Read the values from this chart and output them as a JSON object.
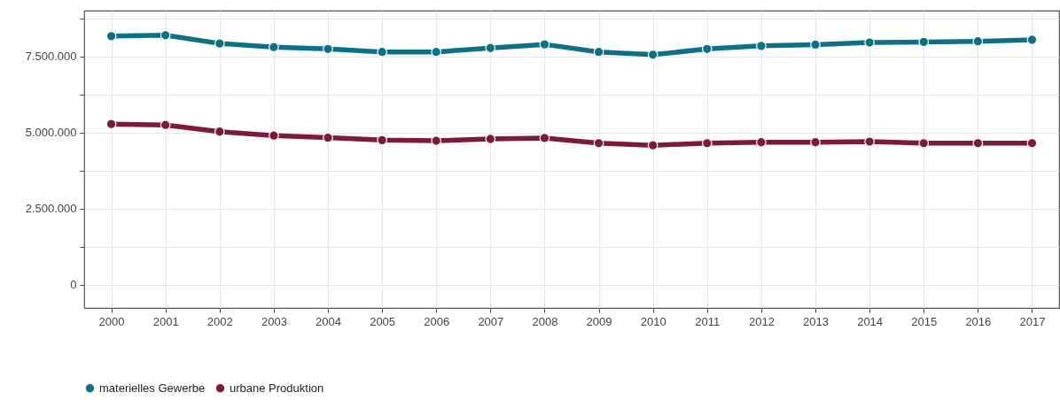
{
  "chart_data": {
    "type": "line",
    "categories": [
      "2000",
      "2001",
      "2002",
      "2003",
      "2004",
      "2005",
      "2006",
      "2007",
      "2008",
      "2009",
      "2010",
      "2011",
      "2012",
      "2013",
      "2014",
      "2015",
      "2016",
      "2017"
    ],
    "series": [
      {
        "name": "materielles Gewerbe",
        "color": "#0e7086",
        "values": [
          8170000,
          8200000,
          7930000,
          7810000,
          7750000,
          7650000,
          7650000,
          7780000,
          7900000,
          7650000,
          7560000,
          7750000,
          7850000,
          7890000,
          7960000,
          7980000,
          8000000,
          8050000
        ]
      },
      {
        "name": "urbane Produktion",
        "color": "#7b1a3e",
        "values": [
          5280000,
          5250000,
          5030000,
          4900000,
          4830000,
          4750000,
          4730000,
          4790000,
          4820000,
          4650000,
          4580000,
          4650000,
          4680000,
          4680000,
          4700000,
          4650000,
          4650000,
          4650000
        ]
      }
    ],
    "ylim": [
      -770000,
      9010000
    ],
    "yticks": [
      0,
      {
        "value": 1250000,
        "label": null
      },
      {
        "value": 2500000,
        "label": "2.500.000"
      },
      {
        "value": 3750000,
        "label": null
      },
      {
        "value": 5000000,
        "label": "5.000.000"
      },
      {
        "value": 6250000,
        "label": null
      },
      {
        "value": 7500000,
        "label": "7.500.000"
      },
      {
        "value": 8750000,
        "label": null
      }
    ],
    "grid": true,
    "legend": "bottom",
    "marker": "circle",
    "line_style": "solid"
  }
}
